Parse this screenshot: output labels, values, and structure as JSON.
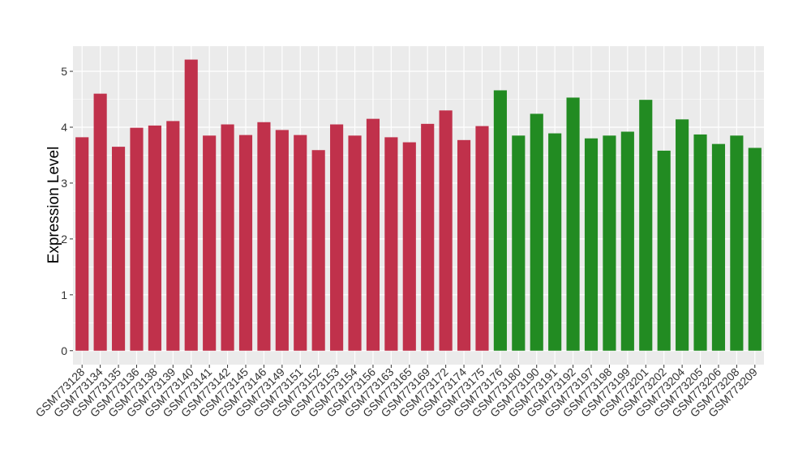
{
  "chart_data": {
    "type": "bar",
    "ylabel": "Expression Level",
    "ylim": [
      -0.25,
      5.45
    ],
    "yticks": [
      0,
      1,
      2,
      3,
      4,
      5
    ],
    "grid": true,
    "legend": "none",
    "categories": [
      "GSM773128",
      "GSM773134",
      "GSM773135",
      "GSM773136",
      "GSM773138",
      "GSM773139",
      "GSM773140",
      "GSM773141",
      "GSM773142",
      "GSM773145",
      "GSM773146",
      "GSM773149",
      "GSM773151",
      "GSM773152",
      "GSM773153",
      "GSM773154",
      "GSM773156",
      "GSM773163",
      "GSM773165",
      "GSM773169",
      "GSM773172",
      "GSM773174",
      "GSM773175",
      "GSM773176",
      "GSM773180",
      "GSM773190",
      "GSM773191",
      "GSM773192",
      "GSM773197",
      "GSM773198",
      "GSM773199",
      "GSM773201",
      "GSM773202",
      "GSM773204",
      "GSM773205",
      "GSM773206",
      "GSM773208",
      "GSM773209"
    ],
    "values": [
      3.82,
      4.6,
      3.65,
      3.99,
      4.03,
      4.11,
      5.21,
      3.85,
      4.05,
      3.86,
      4.09,
      3.95,
      3.86,
      3.59,
      4.05,
      3.85,
      4.15,
      3.82,
      3.73,
      4.06,
      4.3,
      3.77,
      4.02,
      4.66,
      3.85,
      4.24,
      3.89,
      4.53,
      3.8,
      3.85,
      3.92,
      4.49,
      3.58,
      4.14,
      3.87,
      3.7,
      3.85,
      3.63
    ],
    "groups": [
      "red",
      "red",
      "red",
      "red",
      "red",
      "red",
      "red",
      "red",
      "red",
      "red",
      "red",
      "red",
      "red",
      "red",
      "red",
      "red",
      "red",
      "red",
      "red",
      "red",
      "red",
      "red",
      "red",
      "green",
      "green",
      "green",
      "green",
      "green",
      "green",
      "green",
      "green",
      "green",
      "green",
      "green",
      "green",
      "green",
      "green",
      "green"
    ],
    "colors": {
      "red": "#C0314B",
      "green": "#228B22",
      "panel": "#EBEBEB",
      "grid": "#FFFFFF"
    }
  }
}
